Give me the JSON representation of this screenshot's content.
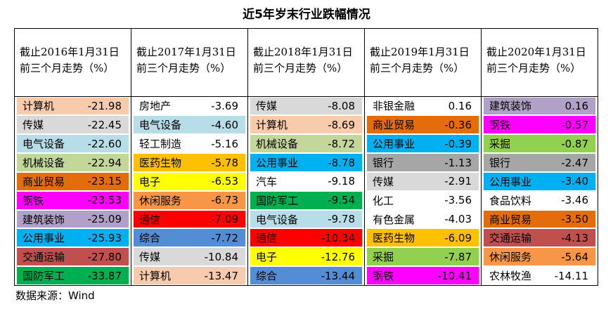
{
  "title": "近5年岁末行业跌幅情况",
  "columns": [
    {
      "header": [
        "截止2016年1月31日",
        "前三个月走势（%）"
      ],
      "rows": [
        {
          "name": "计算机",
          "value": "-21.98",
          "color": "#f8cbad"
        },
        {
          "name": "传媒",
          "value": "-22.45",
          "color": "#d9d9d9"
        },
        {
          "name": "电气设备",
          "value": "-22.60",
          "color": "#b7dee8"
        },
        {
          "name": "机械设备",
          "value": "-22.94",
          "color": "#c4d79b"
        },
        {
          "name": "商业贸易",
          "value": "-23.15",
          "color": "#e46c0a"
        },
        {
          "name": "钢铁",
          "value": "-23.53",
          "color": "#ff00ff"
        },
        {
          "name": "建筑装饰",
          "value": "-25.09",
          "color": "#b1a0c7"
        },
        {
          "name": "公用事业",
          "value": "-25.93",
          "color": "#00b0f0"
        },
        {
          "name": "交通运输",
          "value": "-27.80",
          "color": "#c0504d"
        },
        {
          "name": "国防军工",
          "value": "-33.87",
          "color": "#00b050"
        }
      ]
    },
    {
      "header": [
        "截止2017年1月31日",
        "前三个月走势（%）"
      ],
      "rows": [
        {
          "name": "房地产",
          "value": "-3.69",
          "color": "#ffffff"
        },
        {
          "name": "电气设备",
          "value": "-4.60",
          "color": "#b7dee8"
        },
        {
          "name": "轻工制造",
          "value": "-5.16",
          "color": "#ffffff"
        },
        {
          "name": "医药生物",
          "value": "-5.78",
          "color": "#ffc000"
        },
        {
          "name": "电子",
          "value": "-6.53",
          "color": "#ffff00"
        },
        {
          "name": "休闲服务",
          "value": "-6.73",
          "color": "#f79646"
        },
        {
          "name": "通信",
          "value": "-7.09",
          "color": "#ff0000"
        },
        {
          "name": "综合",
          "value": "-7.72",
          "color": "#538dd5"
        },
        {
          "name": "传媒",
          "value": "-10.84",
          "color": "#d9d9d9"
        },
        {
          "name": "计算机",
          "value": "-13.47",
          "color": "#f8cbad"
        }
      ]
    },
    {
      "header": [
        "截止2018年1月31日",
        "前三个月走势（%）"
      ],
      "rows": [
        {
          "name": "传媒",
          "value": "-8.08",
          "color": "#d9d9d9"
        },
        {
          "name": "计算机",
          "value": "-8.69",
          "color": "#f8cbad"
        },
        {
          "name": "机械设备",
          "value": "-8.72",
          "color": "#c4d79b"
        },
        {
          "name": "公用事业",
          "value": "-8.78",
          "color": "#00b0f0"
        },
        {
          "name": "汽车",
          "value": "-9.18",
          "color": "#ffffff"
        },
        {
          "name": "国防军工",
          "value": "-9.54",
          "color": "#00b050"
        },
        {
          "name": "电气设备",
          "value": "-9.78",
          "color": "#b7dee8"
        },
        {
          "name": "通信",
          "value": "-10.34",
          "color": "#ff0000"
        },
        {
          "name": "电子",
          "value": "-12.76",
          "color": "#ffff00"
        },
        {
          "name": "综合",
          "value": "-13.44",
          "color": "#538dd5"
        }
      ]
    },
    {
      "header": [
        "截止2019年1月31日",
        "前三个月走势（%）"
      ],
      "rows": [
        {
          "name": "非银金融",
          "value": "0.16",
          "color": "#ffffff"
        },
        {
          "name": "商业贸易",
          "value": "-0.36",
          "color": "#e46c0a"
        },
        {
          "name": "公用事业",
          "value": "-0.39",
          "color": "#00b0f0"
        },
        {
          "name": "银行",
          "value": "-1.13",
          "color": "#a6a6a6"
        },
        {
          "name": "传媒",
          "value": "-2.91",
          "color": "#d9d9d9"
        },
        {
          "name": "化工",
          "value": "-3.56",
          "color": "#ffffff"
        },
        {
          "name": "有色金属",
          "value": "-4.03",
          "color": "#ffffff"
        },
        {
          "name": "医药生物",
          "value": "-6.09",
          "color": "#ffc000"
        },
        {
          "name": "采掘",
          "value": "-7.87",
          "color": "#92d050"
        },
        {
          "name": "钢铁",
          "value": "-10.41",
          "color": "#ff00ff"
        }
      ]
    },
    {
      "header": [
        "截止2020年1月31日",
        "前三个月走势（%）"
      ],
      "rows": [
        {
          "name": "建筑装饰",
          "value": "0.16",
          "color": "#b1a0c7"
        },
        {
          "name": "钢铁",
          "value": "-0.57",
          "color": "#ff00ff"
        },
        {
          "name": "采掘",
          "value": "-0.87",
          "color": "#92d050"
        },
        {
          "name": "银行",
          "value": "-2.47",
          "color": "#a6a6a6"
        },
        {
          "name": "公用事业",
          "value": "-3.40",
          "color": "#00b0f0"
        },
        {
          "name": "食品饮料",
          "value": "-3.46",
          "color": "#ffffff"
        },
        {
          "name": "商业贸易",
          "value": "-3.50",
          "color": "#e46c0a"
        },
        {
          "name": "交通运输",
          "value": "-4.13",
          "color": "#c0504d"
        },
        {
          "name": "休闲服务",
          "value": "-5.64",
          "color": "#f79646"
        },
        {
          "name": "农林牧渔",
          "value": "-14.11",
          "color": "#ffffff"
        }
      ]
    }
  ],
  "source": "数据来源：Wind"
}
